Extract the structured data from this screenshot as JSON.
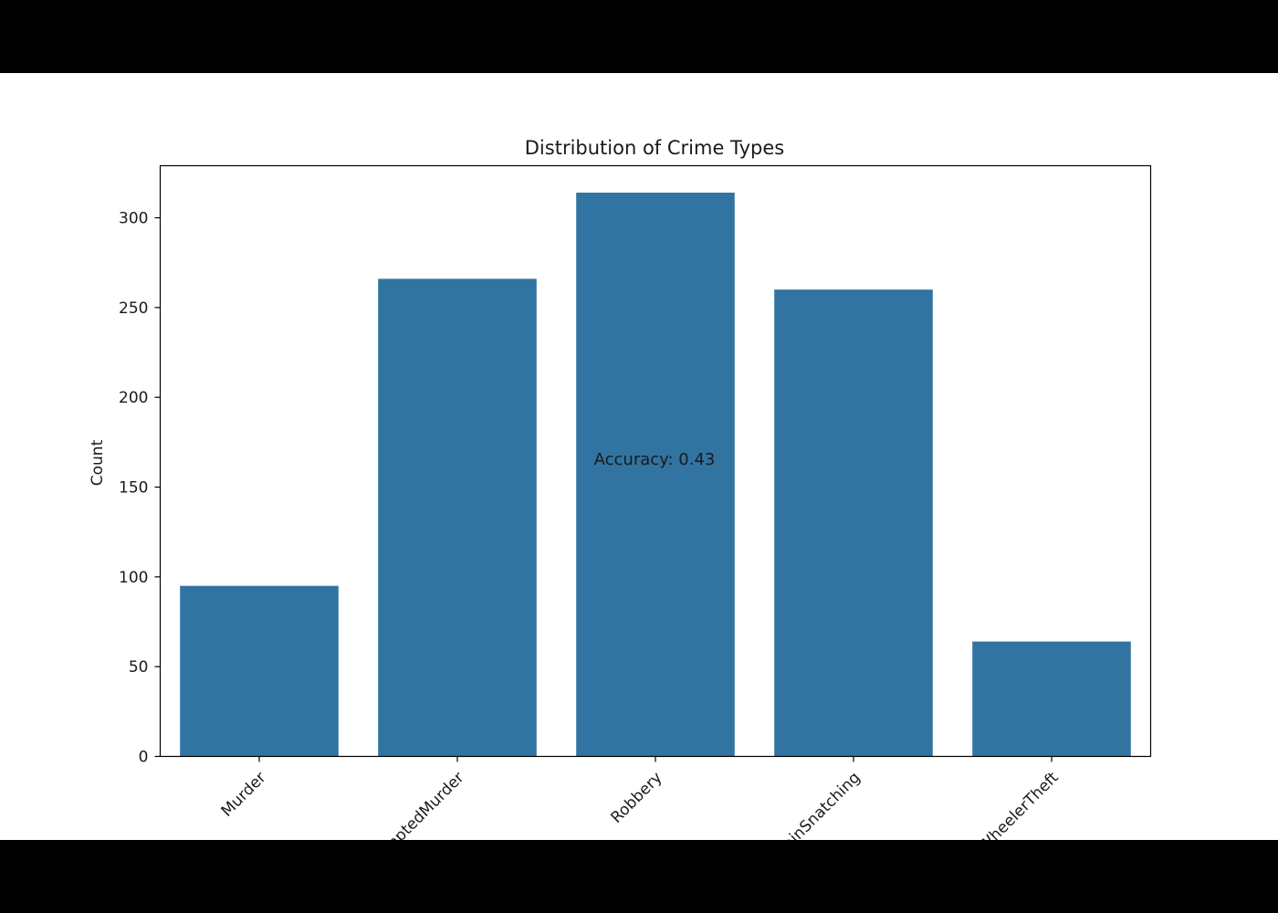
{
  "chart_data": {
    "type": "bar",
    "title": "Distribution of Crime Types",
    "xlabel": "",
    "ylabel": "Count",
    "categories": [
      "Murder",
      "AttemptedMurder",
      "Robbery",
      "ChainSnatching",
      "TwoWheelerTheft"
    ],
    "values": [
      95,
      266,
      314,
      260,
      64
    ],
    "ylim": [
      0,
      329
    ],
    "yticks": [
      "0",
      "50",
      "100",
      "150",
      "200",
      "250",
      "300"
    ],
    "annotation": "Accuracy: 0.43",
    "grid": false,
    "legend": "none",
    "bar_color": "#3274a1"
  }
}
